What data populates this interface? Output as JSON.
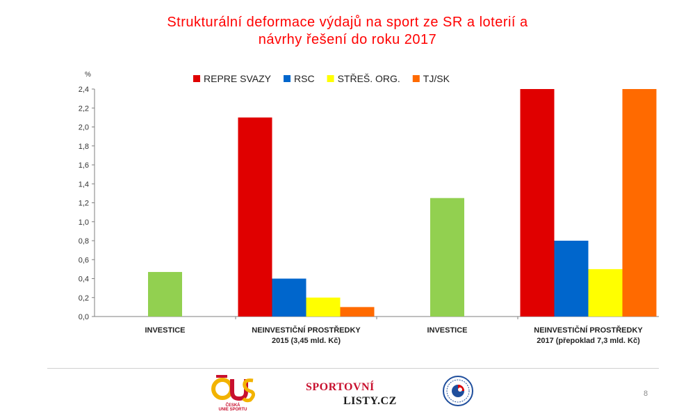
{
  "title_lines": [
    "Strukturální deformace výdajů na sport ze SR a loterií a",
    "návrhy řešení do roku 2017"
  ],
  "colors": {
    "title": "#ff0000",
    "repre": "#e00000",
    "rsc": "#0066cc",
    "stres": "#ffff00",
    "tjsk": "#ff6a00",
    "investice": "#92d050"
  },
  "footer": {
    "page_number": "8",
    "logo_cus_text": [
      "ČESKÁ",
      "UNIE SPORTU"
    ],
    "logo_cus_icon": "cus-logo-icon",
    "logo_sl_line1": "SPORTOVNÍ",
    "logo_sl_line2": "LISTY.CZ",
    "seal_icon": "circular-seal-icon"
  },
  "chart_data": {
    "type": "bar",
    "title": "Strukturální deformace výdajů na sport ze SR a loterií a návrhy řešení do roku 2017",
    "ylabel": "%",
    "xlabel": "",
    "ylim": [
      0,
      2.4
    ],
    "yticks": [
      "0,0",
      "0,2",
      "0,4",
      "0,6",
      "0,8",
      "1,0",
      "1,2",
      "1,4",
      "1,6",
      "1,8",
      "2,0",
      "2,2",
      "2,4"
    ],
    "grid": false,
    "legend_position": "top",
    "legend": [
      {
        "name": "REPRE SVAZY",
        "color": "#e00000"
      },
      {
        "name": "RSC",
        "color": "#0066cc"
      },
      {
        "name": "STŘEŠ. ORG.",
        "color": "#ffff00"
      },
      {
        "name": "TJ/SK",
        "color": "#ff6a00"
      }
    ],
    "groups": [
      {
        "label": [
          "INVESTICE"
        ],
        "bars": [
          {
            "series": "INVESTICE",
            "value": 0.47,
            "color": "#92d050"
          }
        ]
      },
      {
        "label": [
          "NEINVESTIČNÍ PROSTŘEDKY",
          "2015 (3,45 mld. Kč)"
        ],
        "bars": [
          {
            "series": "REPRE SVAZY",
            "value": 2.1,
            "color": "#e00000"
          },
          {
            "series": "RSC",
            "value": 0.4,
            "color": "#0066cc"
          },
          {
            "series": "STŘEŠ. ORG.",
            "value": 0.2,
            "color": "#ffff00"
          },
          {
            "series": "TJ/SK",
            "value": 0.1,
            "color": "#ff6a00"
          }
        ]
      },
      {
        "label": [
          "INVESTICE"
        ],
        "bars": [
          {
            "series": "INVESTICE",
            "value": 1.25,
            "color": "#92d050"
          }
        ]
      },
      {
        "label": [
          "NEINVESTIČNÍ PROSTŘEDKY",
          "2017 (přepoklad 7,3 mld. Kč)"
        ],
        "bars": [
          {
            "series": "REPRE SVAZY",
            "value": 2.4,
            "color": "#e00000"
          },
          {
            "series": "RSC",
            "value": 0.8,
            "color": "#0066cc"
          },
          {
            "series": "STŘEŠ. ORG.",
            "value": 0.5,
            "color": "#ffff00"
          },
          {
            "series": "TJ/SK",
            "value": 2.4,
            "color": "#ff6a00"
          }
        ]
      }
    ]
  }
}
